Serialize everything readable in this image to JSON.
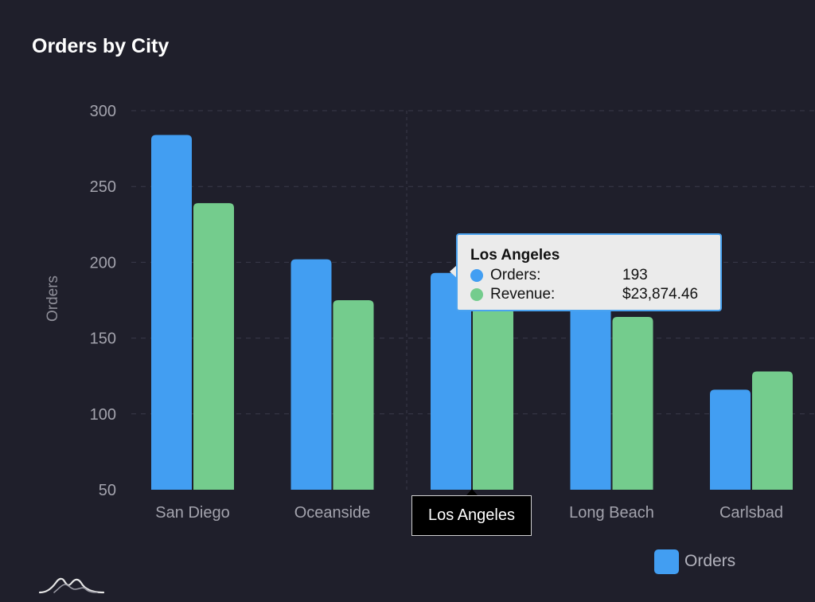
{
  "colors": {
    "background": "#1f1f2b",
    "orders": "#429ef2",
    "revenue": "#74cc8d",
    "grid": "#3a3a4a",
    "tick_text": "#a3a3ad"
  },
  "chart_data": {
    "type": "bar",
    "title": "Orders by City",
    "xlabel": "",
    "ylabel": "Orders",
    "ylim": [
      50,
      300
    ],
    "yticks": [
      50,
      100,
      150,
      200,
      250,
      300
    ],
    "grid": true,
    "categories": [
      "San Diego",
      "Oceanside",
      "Los Angeles",
      "Long Beach",
      "Carlsbad"
    ],
    "series": [
      {
        "name": "Orders",
        "values": [
          284,
          202,
          193,
          172,
          116
        ]
      },
      {
        "name": "Revenue",
        "values": [
          239,
          175,
          170,
          164,
          128
        ]
      }
    ],
    "legend": {
      "placement": "bottom-right",
      "entries": [
        "Orders"
      ]
    }
  },
  "tooltip": {
    "title": "Los Angeles",
    "rows": [
      {
        "label": "Orders:",
        "value": "193"
      },
      {
        "label": "Revenue:",
        "value": "$23,874.46"
      }
    ]
  },
  "axis_tooltip": {
    "label": "Los Angeles"
  },
  "logo": {
    "icon": "mountain-logo-icon"
  }
}
